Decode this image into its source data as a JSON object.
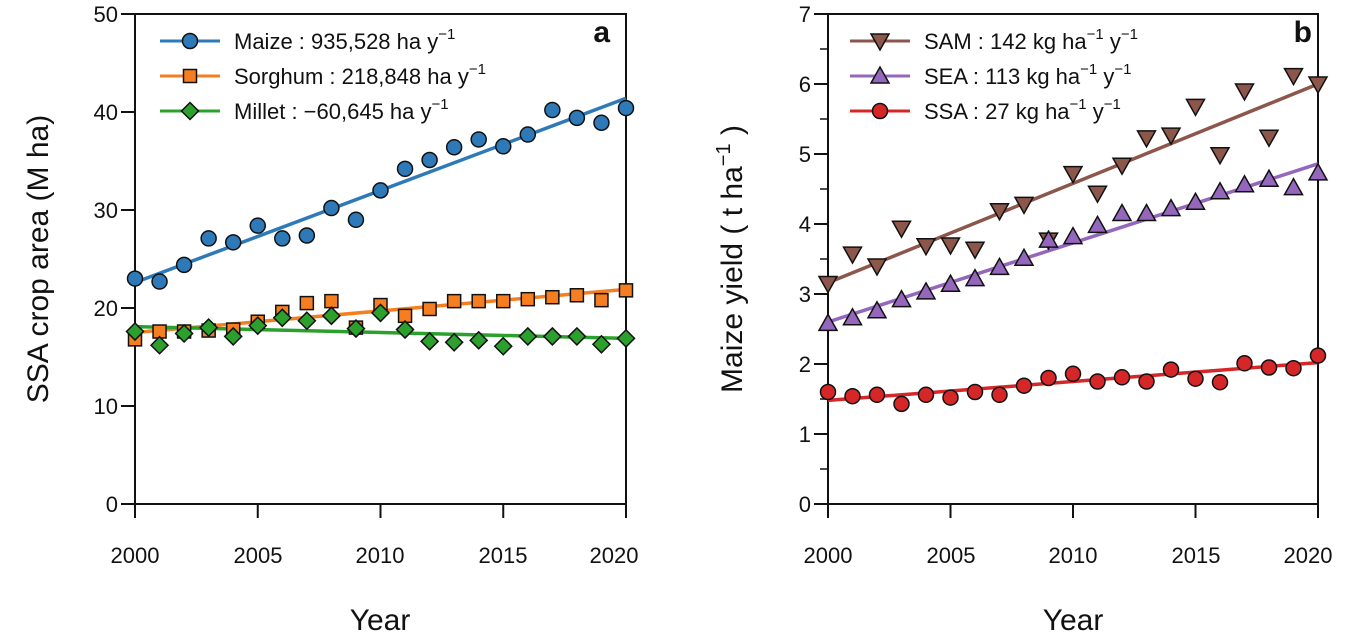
{
  "chart_data": [
    {
      "type": "scatter",
      "panel_label": "a",
      "title": "",
      "xlabel": "Year",
      "ylabel": "SSA crop area (M ha)",
      "xlim": [
        2000,
        2020
      ],
      "ylim": [
        0,
        50
      ],
      "xticks": [
        2000,
        2005,
        2010,
        2015,
        2020
      ],
      "yticks": [
        0,
        10,
        20,
        30,
        40,
        50
      ],
      "legend_position": "top-left",
      "x": [
        2000,
        2001,
        2002,
        2003,
        2004,
        2005,
        2006,
        2007,
        2008,
        2009,
        2010,
        2011,
        2012,
        2013,
        2014,
        2015,
        2016,
        2017,
        2018,
        2019,
        2020
      ],
      "series": [
        {
          "name": "Maize",
          "legend_label": "Maize : 935,528 ha y",
          "legend_sup": "−1",
          "marker": "circle",
          "color": "#2e7ab8",
          "values": [
            23.0,
            22.7,
            24.4,
            27.1,
            26.7,
            28.4,
            27.1,
            27.4,
            30.2,
            29.0,
            32.0,
            34.2,
            35.1,
            36.4,
            37.2,
            36.5,
            37.7,
            40.2,
            39.4,
            38.9,
            40.4
          ],
          "trend": [
            22.6,
            41.4
          ]
        },
        {
          "name": "Sorghum",
          "legend_label": "Sorghum : 218,848 ha y",
          "legend_sup": "−1",
          "marker": "square",
          "color": "#f57f20",
          "values": [
            16.8,
            17.6,
            17.6,
            17.7,
            17.8,
            18.6,
            19.6,
            20.5,
            20.7,
            18.0,
            20.3,
            19.2,
            19.9,
            20.7,
            20.7,
            20.7,
            20.9,
            21.1,
            21.3,
            20.8,
            21.8
          ],
          "trend": [
            17.5,
            21.9
          ]
        },
        {
          "name": "Millet",
          "legend_label": "Millet : −60,645 ha y",
          "legend_sup": "−1",
          "marker": "diamond",
          "color": "#2ca02c",
          "values": [
            17.6,
            16.2,
            17.4,
            18.0,
            17.1,
            18.2,
            19.0,
            18.7,
            19.2,
            17.9,
            19.5,
            17.8,
            16.6,
            16.5,
            16.7,
            16.1,
            17.1,
            17.1,
            17.1,
            16.3,
            16.9
          ],
          "trend": [
            18.1,
            16.9
          ]
        }
      ]
    },
    {
      "type": "scatter",
      "panel_label": "b",
      "title": "",
      "xlabel": "Year",
      "ylabel_main": "Maize yield",
      "ylabel_unit": "t ha",
      "ylabel_sup": "−1",
      "xlim": [
        2000,
        2020
      ],
      "ylim": [
        0,
        7
      ],
      "xticks": [
        2000,
        2005,
        2010,
        2015,
        2020
      ],
      "yticks": [
        0,
        1,
        2,
        3,
        4,
        5,
        6,
        7
      ],
      "legend_position": "top-left",
      "x": [
        2000,
        2001,
        2002,
        2003,
        2004,
        2005,
        2006,
        2007,
        2008,
        2009,
        2010,
        2011,
        2012,
        2013,
        2014,
        2015,
        2016,
        2017,
        2018,
        2019,
        2020
      ],
      "series": [
        {
          "name": "SAM",
          "legend_label": "SAM : 142 kg ha",
          "legend_mid": " y",
          "legend_sup": "−1",
          "marker": "triangle-down",
          "color": "#8c564b",
          "values": [
            3.15,
            3.57,
            3.4,
            3.94,
            3.69,
            3.7,
            3.64,
            4.19,
            4.28,
            3.77,
            4.72,
            4.44,
            4.84,
            5.23,
            5.27,
            5.68,
            4.99,
            5.9,
            5.24,
            6.12,
            6.0
          ],
          "trend": [
            3.16,
            6.0
          ]
        },
        {
          "name": "SEA",
          "legend_label": "SEA : 113 kg ha",
          "legend_mid": " y",
          "legend_sup": "−1",
          "marker": "triangle-up",
          "color": "#9467bd",
          "values": [
            2.58,
            2.66,
            2.76,
            2.92,
            3.03,
            3.14,
            3.22,
            3.38,
            3.51,
            3.77,
            3.82,
            3.98,
            4.15,
            4.15,
            4.22,
            4.31,
            4.46,
            4.56,
            4.64,
            4.52,
            4.73
          ],
          "trend": [
            2.6,
            4.86
          ]
        },
        {
          "name": "SSA",
          "legend_label": "SSA : 27 kg ha",
          "legend_mid": " y",
          "legend_sup": "−1",
          "marker": "circle",
          "color": "#d62728",
          "values": [
            1.6,
            1.54,
            1.56,
            1.43,
            1.56,
            1.52,
            1.6,
            1.56,
            1.69,
            1.8,
            1.86,
            1.75,
            1.81,
            1.75,
            1.92,
            1.79,
            1.74,
            2.01,
            1.95,
            1.94,
            2.12
          ],
          "trend": [
            1.48,
            2.02
          ]
        }
      ]
    }
  ]
}
